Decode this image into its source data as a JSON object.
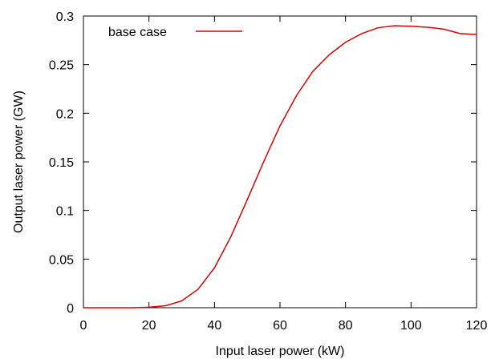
{
  "chart_data": {
    "type": "line",
    "xlabel": "Input laser power (kW)",
    "ylabel": "Output laser power (GW)",
    "xlim": [
      0,
      120
    ],
    "ylim": [
      0,
      0.3
    ],
    "xticks": [
      0,
      20,
      40,
      60,
      80,
      100,
      120
    ],
    "yticks": [
      0,
      0.05,
      0.1,
      0.15,
      0.2,
      0.25,
      0.3
    ],
    "xtick_labels": [
      "0",
      "20",
      "40",
      "60",
      "80",
      "100",
      "120"
    ],
    "ytick_labels": [
      "0",
      "0.05",
      "0.1",
      "0.15",
      "0.2",
      "0.25",
      "0.3"
    ],
    "grid": false,
    "legend_position": "top-left",
    "series": [
      {
        "name": "base case",
        "color": "#dd0000",
        "x": [
          0,
          5,
          10,
          15,
          20,
          25,
          30,
          35,
          40,
          45,
          50,
          55,
          60,
          65,
          70,
          75,
          80,
          85,
          90,
          95,
          100,
          105,
          110,
          115,
          120
        ],
        "y": [
          0,
          0,
          0,
          0,
          0.0005,
          0.002,
          0.007,
          0.019,
          0.041,
          0.073,
          0.111,
          0.15,
          0.187,
          0.218,
          0.243,
          0.26,
          0.273,
          0.282,
          0.288,
          0.29,
          0.2895,
          0.2885,
          0.2865,
          0.282,
          0.281
        ]
      }
    ]
  }
}
